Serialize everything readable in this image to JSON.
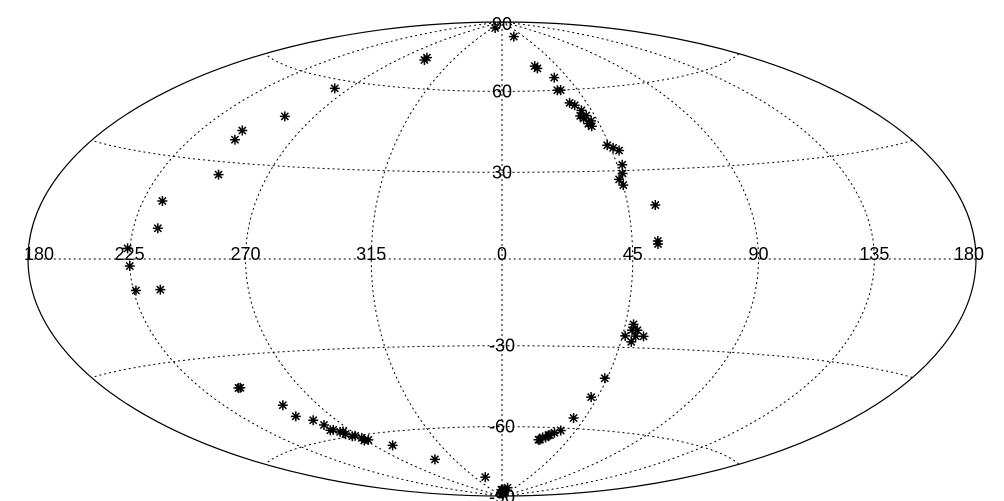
{
  "chart_data": {
    "type": "scatter",
    "projection": "hammer-aitoff",
    "grid": true,
    "lon_labels": [
      "180",
      "135",
      "90",
      "45",
      "0",
      "315",
      "270",
      "225",
      "180"
    ],
    "lat_labels": [
      "90",
      "60",
      "30",
      "-30",
      "-60",
      "-90"
    ],
    "marker": "asterisk",
    "points": [
      {
        "lon": 33,
        "lat": 87
      },
      {
        "lon": 335,
        "lat": 83
      },
      {
        "lon": 70,
        "lat": 72
      },
      {
        "lon": 69,
        "lat": 71
      },
      {
        "lon": 333,
        "lat": 70
      },
      {
        "lon": 332,
        "lat": 69
      },
      {
        "lon": 324,
        "lat": 65
      },
      {
        "lon": 325,
        "lat": 60
      },
      {
        "lon": 327,
        "lat": 60
      },
      {
        "lon": 98,
        "lat": 57
      },
      {
        "lon": 324,
        "lat": 55
      },
      {
        "lon": 322,
        "lat": 54
      },
      {
        "lon": 320,
        "lat": 52
      },
      {
        "lon": 322,
        "lat": 50
      },
      {
        "lon": 319,
        "lat": 50
      },
      {
        "lon": 321,
        "lat": 49
      },
      {
        "lon": 318,
        "lat": 48
      },
      {
        "lon": 320,
        "lat": 47
      },
      {
        "lon": 319,
        "lat": 46
      },
      {
        "lon": 104,
        "lat": 46
      },
      {
        "lon": 116,
        "lat": 40
      },
      {
        "lon": 115,
        "lat": 37
      },
      {
        "lon": 316,
        "lat": 39
      },
      {
        "lon": 314,
        "lat": 38
      },
      {
        "lon": 312,
        "lat": 37
      },
      {
        "lon": 313,
        "lat": 32
      },
      {
        "lon": 314,
        "lat": 29
      },
      {
        "lon": 316,
        "lat": 27
      },
      {
        "lon": 315,
        "lat": 25
      },
      {
        "lon": 110,
        "lat": 26
      },
      {
        "lon": 127,
        "lat": 17
      },
      {
        "lon": 305,
        "lat": 18
      },
      {
        "lon": 125,
        "lat": 9
      },
      {
        "lon": 306,
        "lat": 6
      },
      {
        "lon": 306,
        "lat": 5
      },
      {
        "lon": 136,
        "lat": 3
      },
      {
        "lon": 135,
        "lat": -2
      },
      {
        "lon": 134,
        "lat": -9
      },
      {
        "lon": 124,
        "lat": -9
      },
      {
        "lon": 312,
        "lat": -22
      },
      {
        "lon": 310,
        "lat": -24
      },
      {
        "lon": 312,
        "lat": -24
      },
      {
        "lon": 310,
        "lat": -26
      },
      {
        "lon": 314,
        "lat": -26
      },
      {
        "lon": 307,
        "lat": -26
      },
      {
        "lon": 311,
        "lat": -28
      },
      {
        "lon": 316,
        "lat": -41
      },
      {
        "lon": 318,
        "lat": -48
      },
      {
        "lon": 117,
        "lat": -40
      },
      {
        "lon": 118,
        "lat": -40
      },
      {
        "lon": 107,
        "lat": -47
      },
      {
        "lon": 108,
        "lat": -51
      },
      {
        "lon": 102,
        "lat": -53
      },
      {
        "lon": 100,
        "lat": -55
      },
      {
        "lon": 101,
        "lat": -57
      },
      {
        "lon": 99,
        "lat": -57
      },
      {
        "lon": 97,
        "lat": -58
      },
      {
        "lon": 96,
        "lat": -59
      },
      {
        "lon": 95,
        "lat": -58
      },
      {
        "lon": 94,
        "lat": -60
      },
      {
        "lon": 92,
        "lat": -60
      },
      {
        "lon": 90,
        "lat": -61
      },
      {
        "lon": 91,
        "lat": -62
      },
      {
        "lon": 88,
        "lat": -62
      },
      {
        "lon": 78,
        "lat": -65
      },
      {
        "lon": 62,
        "lat": -72
      },
      {
        "lon": 28,
        "lat": -81
      },
      {
        "lon": 321,
        "lat": -56
      },
      {
        "lon": 324,
        "lat": -61
      },
      {
        "lon": 327,
        "lat": -62
      },
      {
        "lon": 329,
        "lat": -63
      },
      {
        "lon": 330,
        "lat": -63
      },
      {
        "lon": 331,
        "lat": -64
      },
      {
        "lon": 333,
        "lat": -64
      },
      {
        "lon": 334,
        "lat": -65
      },
      {
        "lon": 335,
        "lat": -65
      },
      {
        "lon": 3,
        "lat": -87
      },
      {
        "lon": 355,
        "lat": -88
      },
      {
        "lon": 350,
        "lat": -88
      },
      {
        "lon": 345,
        "lat": -87
      },
      {
        "lon": 352,
        "lat": -89
      },
      {
        "lon": 358,
        "lat": -89
      },
      {
        "lon": 340,
        "lat": -86
      },
      {
        "lon": 347,
        "lat": -89
      },
      {
        "lon": 356,
        "lat": -87
      },
      {
        "lon": 343,
        "lat": -88
      }
    ]
  }
}
